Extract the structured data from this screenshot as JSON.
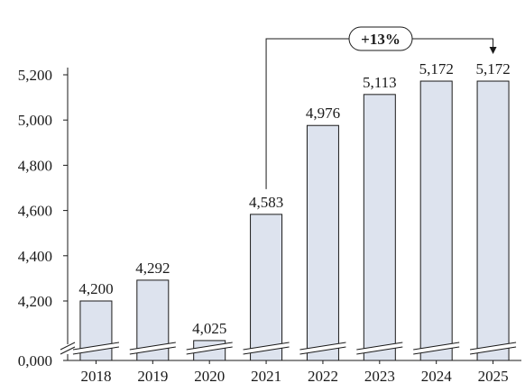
{
  "chart_data": {
    "type": "bar",
    "categories": [
      "2018",
      "2019",
      "2020",
      "2021",
      "2022",
      "2023",
      "2024",
      "2025"
    ],
    "values": [
      4200,
      4292,
      4025,
      4583,
      4976,
      5113,
      5172,
      5172
    ],
    "value_labels": [
      "4,200",
      "4,292",
      "4,025",
      "4,583",
      "4,976",
      "5,113",
      "5,172",
      "5,172"
    ],
    "yticks": [
      {
        "value": 0,
        "label": "0,000"
      },
      {
        "value": 4200,
        "label": "4,200"
      },
      {
        "value": 4400,
        "label": "4,400"
      },
      {
        "value": 4600,
        "label": "4,600"
      },
      {
        "value": 4800,
        "label": "4,800"
      },
      {
        "value": 5000,
        "label": "5,000"
      },
      {
        "value": 5200,
        "label": "5,200"
      }
    ],
    "ylim": [
      4000,
      5400
    ],
    "axis_break": true,
    "grid": false,
    "title": "",
    "xlabel": "",
    "ylabel": "",
    "colors": {
      "bar_fill": "#dde3ee",
      "bar_stroke": "#1a1a1a"
    },
    "annotation": {
      "text": "+13%",
      "from_category": "2021",
      "to_category": "2025"
    }
  }
}
